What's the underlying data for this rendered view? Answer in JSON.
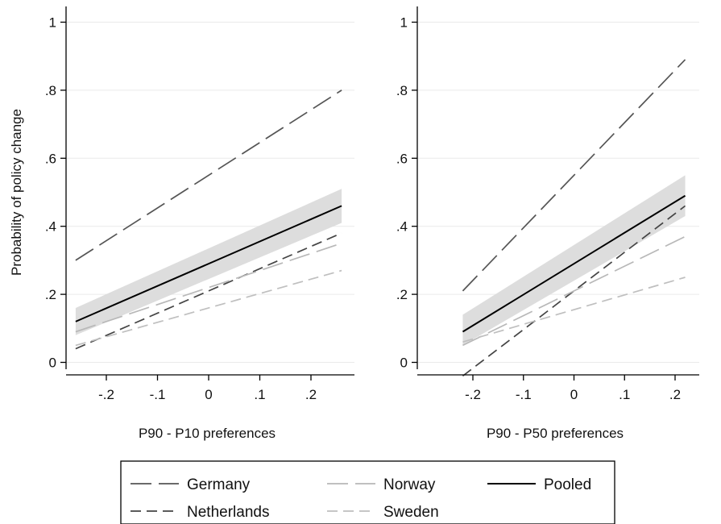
{
  "chart_data": [
    {
      "type": "line",
      "panel": "left",
      "title": "",
      "xlabel": "P90 - P10 preferences",
      "ylabel": "Probability of policy change",
      "xlim": [
        -0.27,
        0.27
      ],
      "ylim": [
        -0.02,
        1.03
      ],
      "x_ticks": [
        -0.2,
        -0.1,
        0,
        0.1,
        0.2
      ],
      "x_tick_labels": [
        "-.2",
        "-.1",
        "0",
        ".1",
        ".2"
      ],
      "y_ticks": [
        0,
        0.2,
        0.4,
        0.6,
        0.8,
        1
      ],
      "y_tick_labels": [
        "0",
        ".2",
        ".4",
        ".6",
        ".8",
        "1"
      ],
      "grid": "horizontal",
      "series": [
        {
          "name": "Germany",
          "x": [
            -0.26,
            0.26
          ],
          "y": [
            0.3,
            0.8
          ],
          "color": "#555555",
          "dash": "long"
        },
        {
          "name": "Netherlands",
          "x": [
            -0.26,
            0.26
          ],
          "y": [
            0.04,
            0.38
          ],
          "color": "#444444",
          "dash": "medium"
        },
        {
          "name": "Norway",
          "x": [
            -0.26,
            0.26
          ],
          "y": [
            0.09,
            0.35
          ],
          "color": "#b8b8b8",
          "dash": "long"
        },
        {
          "name": "Sweden",
          "x": [
            -0.26,
            0.26
          ],
          "y": [
            0.05,
            0.27
          ],
          "color": "#bfbfbf",
          "dash": "medium"
        },
        {
          "name": "Pooled",
          "x": [
            -0.26,
            0.26
          ],
          "y": [
            0.12,
            0.46
          ],
          "color": "#000000",
          "dash": "solid",
          "ci_lower": [
            0.08,
            0.41
          ],
          "ci_upper": [
            0.16,
            0.51
          ]
        }
      ]
    },
    {
      "type": "line",
      "panel": "right",
      "title": "",
      "xlabel": "P90 - P50 preferences",
      "ylabel": "",
      "xlim": [
        -0.23,
        0.23
      ],
      "ylim": [
        -0.02,
        1.03
      ],
      "x_ticks": [
        -0.2,
        -0.1,
        0,
        0.1,
        0.2
      ],
      "x_tick_labels": [
        "-.2",
        "-.1",
        "0",
        ".1",
        ".2"
      ],
      "y_ticks": [
        0,
        0.2,
        0.4,
        0.6,
        0.8,
        1
      ],
      "y_tick_labels": [
        "0",
        ".2",
        ".4",
        ".6",
        ".8",
        "1"
      ],
      "grid": "horizontal",
      "series": [
        {
          "name": "Germany",
          "x": [
            -0.22,
            0.22
          ],
          "y": [
            0.21,
            0.89
          ],
          "color": "#555555",
          "dash": "long"
        },
        {
          "name": "Netherlands",
          "x": [
            -0.22,
            0.22
          ],
          "y": [
            -0.04,
            0.46
          ],
          "color": "#444444",
          "dash": "medium"
        },
        {
          "name": "Norway",
          "x": [
            -0.22,
            0.22
          ],
          "y": [
            0.05,
            0.37
          ],
          "color": "#b8b8b8",
          "dash": "long"
        },
        {
          "name": "Sweden",
          "x": [
            -0.22,
            0.22
          ],
          "y": [
            0.06,
            0.25
          ],
          "color": "#bfbfbf",
          "dash": "medium"
        },
        {
          "name": "Pooled",
          "x": [
            -0.22,
            0.22
          ],
          "y": [
            0.09,
            0.49
          ],
          "color": "#000000",
          "dash": "solid",
          "ci_lower": [
            0.05,
            0.43
          ],
          "ci_upper": [
            0.14,
            0.55
          ]
        }
      ]
    }
  ],
  "legend": {
    "placement": "bottom",
    "entries": [
      {
        "label": "Germany",
        "color": "#555555",
        "dash": "long"
      },
      {
        "label": "Norway",
        "color": "#b8b8b8",
        "dash": "long"
      },
      {
        "label": "Pooled",
        "color": "#000000",
        "dash": "solid"
      },
      {
        "label": "Netherlands",
        "color": "#444444",
        "dash": "medium"
      },
      {
        "label": "Sweden",
        "color": "#bfbfbf",
        "dash": "medium"
      }
    ]
  },
  "colors": {
    "ci_band": "#dddddd",
    "grid": "#eaeaea",
    "axis": "#000000"
  }
}
